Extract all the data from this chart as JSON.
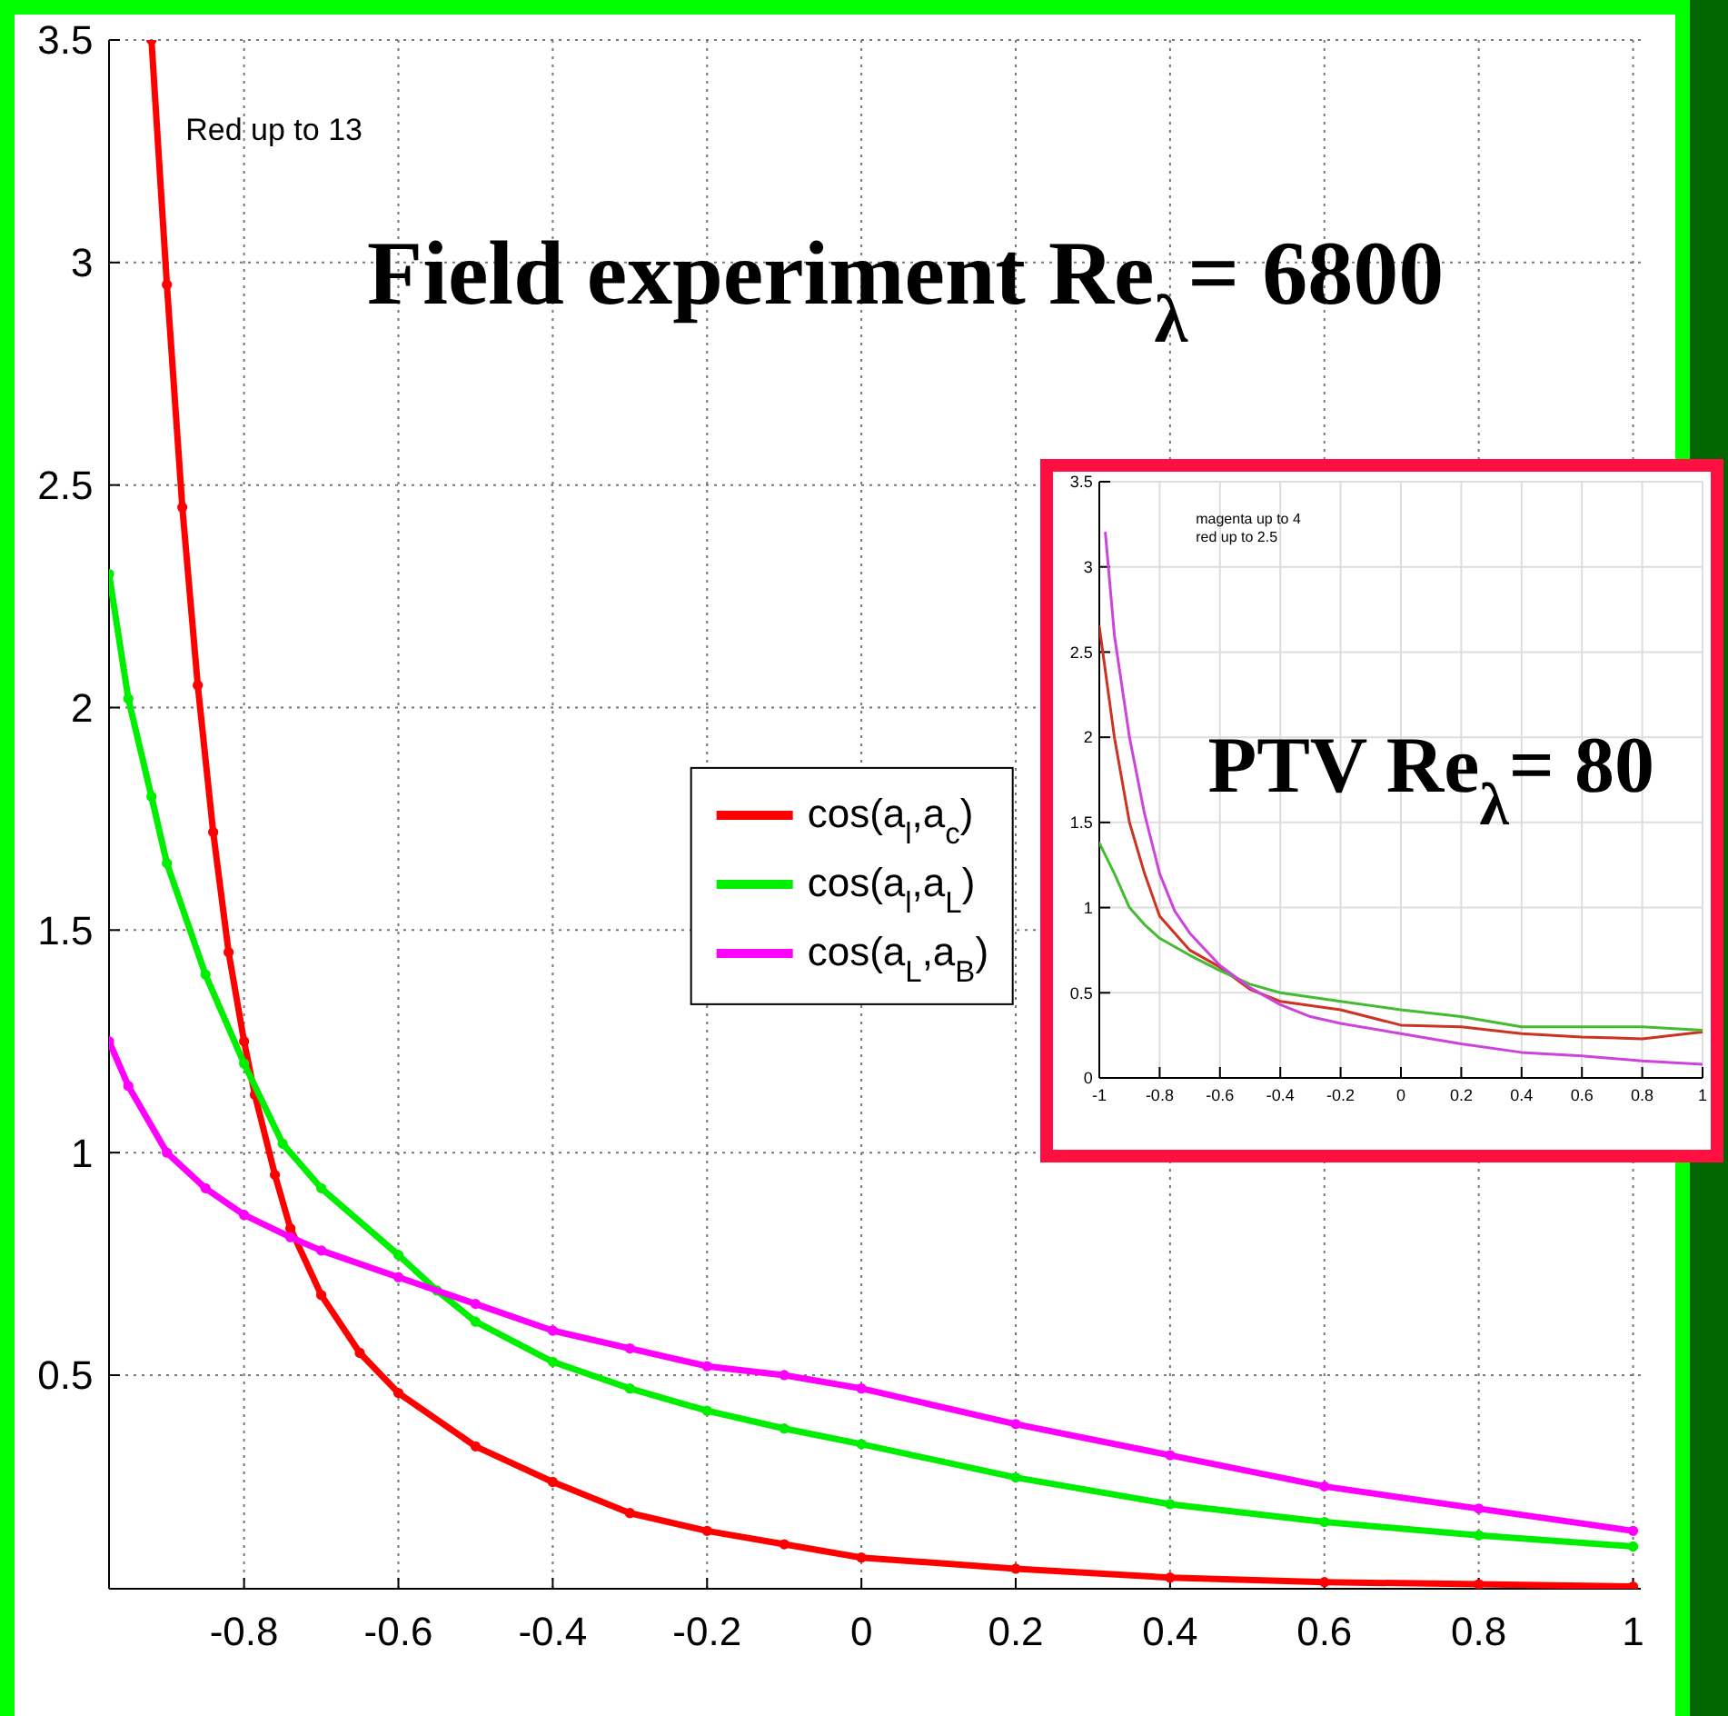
{
  "chart_data": [
    {
      "type": "line",
      "title": "Field experiment Re$_{λ}$= 6800",
      "annotations": [
        "Red up to 13"
      ],
      "xlim": [
        -0.975,
        1.01
      ],
      "ylim": [
        0.02,
        3.5
      ],
      "xticks": [
        -0.8,
        -0.6,
        -0.4,
        -0.2,
        0,
        0.2,
        0.4,
        0.6,
        0.8,
        1
      ],
      "yticks": [
        0.5,
        1,
        1.5,
        2,
        2.5,
        3,
        3.5
      ],
      "grid": true,
      "legend": "center",
      "marker": "circle",
      "line_style": "solid",
      "series": [
        {
          "name": "cos(a$_{l}$,a$_{c}$)",
          "color": "#ff0000",
          "x": [
            -0.92,
            -0.9,
            -0.88,
            -0.86,
            -0.84,
            -0.82,
            -0.8,
            -0.786,
            -0.76,
            -0.74,
            -0.7,
            -0.65,
            -0.6,
            -0.5,
            -0.4,
            -0.3,
            -0.2,
            -0.1,
            0,
            0.2,
            0.4,
            0.6,
            0.8,
            1
          ],
          "values": [
            3.5,
            2.95,
            2.45,
            2.05,
            1.72,
            1.45,
            1.25,
            1.13,
            0.95,
            0.83,
            0.68,
            0.55,
            0.46,
            0.34,
            0.26,
            0.19,
            0.15,
            0.12,
            0.09,
            0.065,
            0.045,
            0.035,
            0.03,
            0.025
          ]
        },
        {
          "name": "cos(a$_{l}$,a$_{L}$)",
          "color": "#00ee00",
          "x": [
            -0.975,
            -0.95,
            -0.92,
            -0.9,
            -0.85,
            -0.8,
            -0.75,
            -0.7,
            -0.6,
            -0.55,
            -0.5,
            -0.4,
            -0.3,
            -0.2,
            -0.1,
            0,
            0.2,
            0.4,
            0.6,
            0.8,
            1
          ],
          "values": [
            2.3,
            2.02,
            1.8,
            1.65,
            1.4,
            1.2,
            1.02,
            0.92,
            0.77,
            0.69,
            0.62,
            0.53,
            0.47,
            0.42,
            0.38,
            0.345,
            0.27,
            0.21,
            0.17,
            0.14,
            0.115
          ]
        },
        {
          "name": "cos(a$_{L}$,a$_{B}$)",
          "color": "#ff00ff",
          "x": [
            -0.975,
            -0.95,
            -0.9,
            -0.85,
            -0.8,
            -0.74,
            -0.7,
            -0.6,
            -0.5,
            -0.4,
            -0.3,
            -0.2,
            -0.1,
            0,
            0.2,
            0.4,
            0.6,
            0.8,
            1
          ],
          "values": [
            1.25,
            1.15,
            1.0,
            0.92,
            0.86,
            0.81,
            0.78,
            0.72,
            0.66,
            0.6,
            0.56,
            0.52,
            0.5,
            0.47,
            0.39,
            0.32,
            0.25,
            0.2,
            0.15
          ]
        }
      ]
    },
    {
      "type": "line",
      "title": "PTV Re$_{λ}$= 80",
      "annotations": [
        "magenta up to 4",
        "red up to 2.5"
      ],
      "xlim": [
        -1,
        1
      ],
      "ylim": [
        0,
        3.5
      ],
      "xticks": [
        -1,
        -0.8,
        -0.6,
        -0.4,
        -0.2,
        0,
        0.2,
        0.4,
        0.6,
        0.8,
        1
      ],
      "yticks": [
        0,
        0.5,
        1,
        1.5,
        2,
        2.5,
        3,
        3.5
      ],
      "grid": true,
      "line_style": "solid",
      "series": [
        {
          "color": "#cc3322",
          "x": [
            -1,
            -0.95,
            -0.9,
            -0.85,
            -0.8,
            -0.7,
            -0.6,
            -0.5,
            -0.4,
            -0.2,
            0,
            0.2,
            0.4,
            0.6,
            0.8,
            0.95,
            1
          ],
          "values": [
            2.65,
            2.0,
            1.5,
            1.2,
            0.95,
            0.75,
            0.65,
            0.52,
            0.45,
            0.4,
            0.31,
            0.3,
            0.26,
            0.24,
            0.23,
            0.26,
            0.27
          ]
        },
        {
          "color": "#44bb33",
          "x": [
            -1,
            -0.95,
            -0.9,
            -0.85,
            -0.8,
            -0.7,
            -0.6,
            -0.5,
            -0.4,
            -0.2,
            0,
            0.2,
            0.4,
            0.6,
            0.8,
            1
          ],
          "values": [
            1.38,
            1.2,
            1.0,
            0.9,
            0.82,
            0.72,
            0.63,
            0.55,
            0.5,
            0.45,
            0.4,
            0.36,
            0.3,
            0.3,
            0.3,
            0.28
          ]
        },
        {
          "color": "#cc44dd",
          "x": [
            -0.98,
            -0.95,
            -0.9,
            -0.85,
            -0.8,
            -0.75,
            -0.7,
            -0.6,
            -0.5,
            -0.4,
            -0.3,
            -0.2,
            0,
            0.2,
            0.4,
            0.6,
            0.8,
            1
          ],
          "values": [
            3.2,
            2.6,
            2.0,
            1.55,
            1.2,
            0.98,
            0.85,
            0.66,
            0.53,
            0.43,
            0.36,
            0.32,
            0.26,
            0.2,
            0.15,
            0.13,
            0.1,
            0.08
          ]
        }
      ]
    }
  ]
}
